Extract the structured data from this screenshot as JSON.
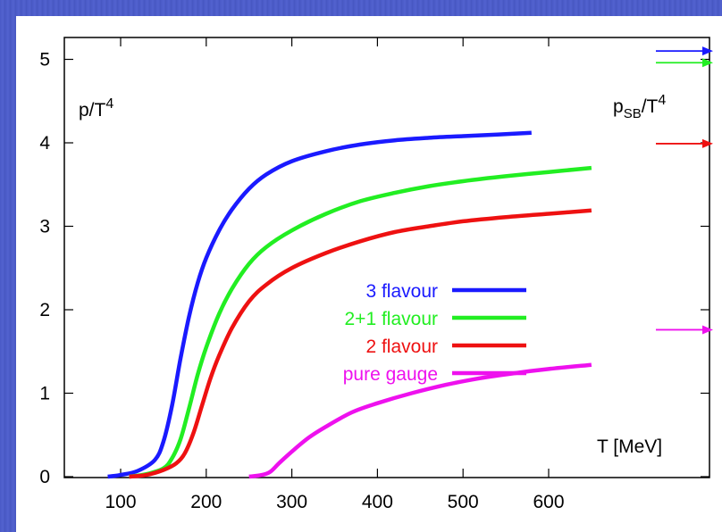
{
  "chart_data": {
    "type": "line",
    "ylabel": "p/T",
    "ylabel_sup": "4",
    "xlabel": "T [MeV]",
    "sb_label": "p",
    "sb_sub": "SB",
    "sb_tail": "/T",
    "sb_sup": "4",
    "xlim": [
      60,
      650
    ],
    "ylim": [
      0,
      5.3
    ],
    "x_ticks": [
      100,
      200,
      300,
      400,
      500,
      600
    ],
    "y_ticks": [
      0,
      1,
      2,
      3,
      4,
      5
    ],
    "grid": false,
    "legend_position": "center",
    "series": [
      {
        "name": "3 flavour",
        "color": "#1a1aff",
        "x": [
          85,
          100,
          120,
          140,
          150,
          160,
          170,
          180,
          190,
          200,
          215,
          230,
          250,
          270,
          300,
          340,
          380,
          420,
          460,
          500,
          540,
          580
        ],
        "y": [
          0.0,
          0.02,
          0.07,
          0.2,
          0.42,
          0.85,
          1.42,
          1.92,
          2.32,
          2.62,
          2.95,
          3.2,
          3.45,
          3.62,
          3.78,
          3.9,
          3.98,
          4.03,
          4.06,
          4.08,
          4.1,
          4.12
        ],
        "sb_limit": 5.1
      },
      {
        "name": "2+1 flavour",
        "color": "#22ee22",
        "x": [
          110,
          130,
          150,
          160,
          170,
          180,
          190,
          200,
          215,
          230,
          250,
          270,
          300,
          340,
          380,
          420,
          460,
          500,
          550,
          600,
          650
        ],
        "y": [
          0.0,
          0.03,
          0.1,
          0.22,
          0.45,
          0.82,
          1.22,
          1.55,
          1.95,
          2.25,
          2.55,
          2.75,
          2.95,
          3.15,
          3.3,
          3.4,
          3.48,
          3.54,
          3.6,
          3.65,
          3.7
        ],
        "sb_limit": 4.96
      },
      {
        "name": "2 flavour",
        "color": "#ee1111",
        "x": [
          110,
          130,
          150,
          165,
          175,
          185,
          195,
          205,
          215,
          230,
          250,
          270,
          300,
          340,
          380,
          420,
          460,
          500,
          550,
          600,
          650
        ],
        "y": [
          0.0,
          0.02,
          0.08,
          0.16,
          0.28,
          0.52,
          0.85,
          1.18,
          1.45,
          1.78,
          2.1,
          2.3,
          2.5,
          2.68,
          2.82,
          2.93,
          3.0,
          3.06,
          3.11,
          3.15,
          3.19
        ],
        "sb_limit": 3.99
      },
      {
        "name": "pure gauge",
        "color": "#ee11ee",
        "x": [
          250,
          265,
          275,
          285,
          300,
          320,
          340,
          370,
          400,
          440,
          480,
          520,
          560,
          600,
          650
        ],
        "y": [
          0.0,
          0.02,
          0.06,
          0.16,
          0.3,
          0.47,
          0.6,
          0.77,
          0.88,
          1.0,
          1.1,
          1.18,
          1.24,
          1.29,
          1.34
        ],
        "sb_limit": 1.76
      }
    ]
  }
}
